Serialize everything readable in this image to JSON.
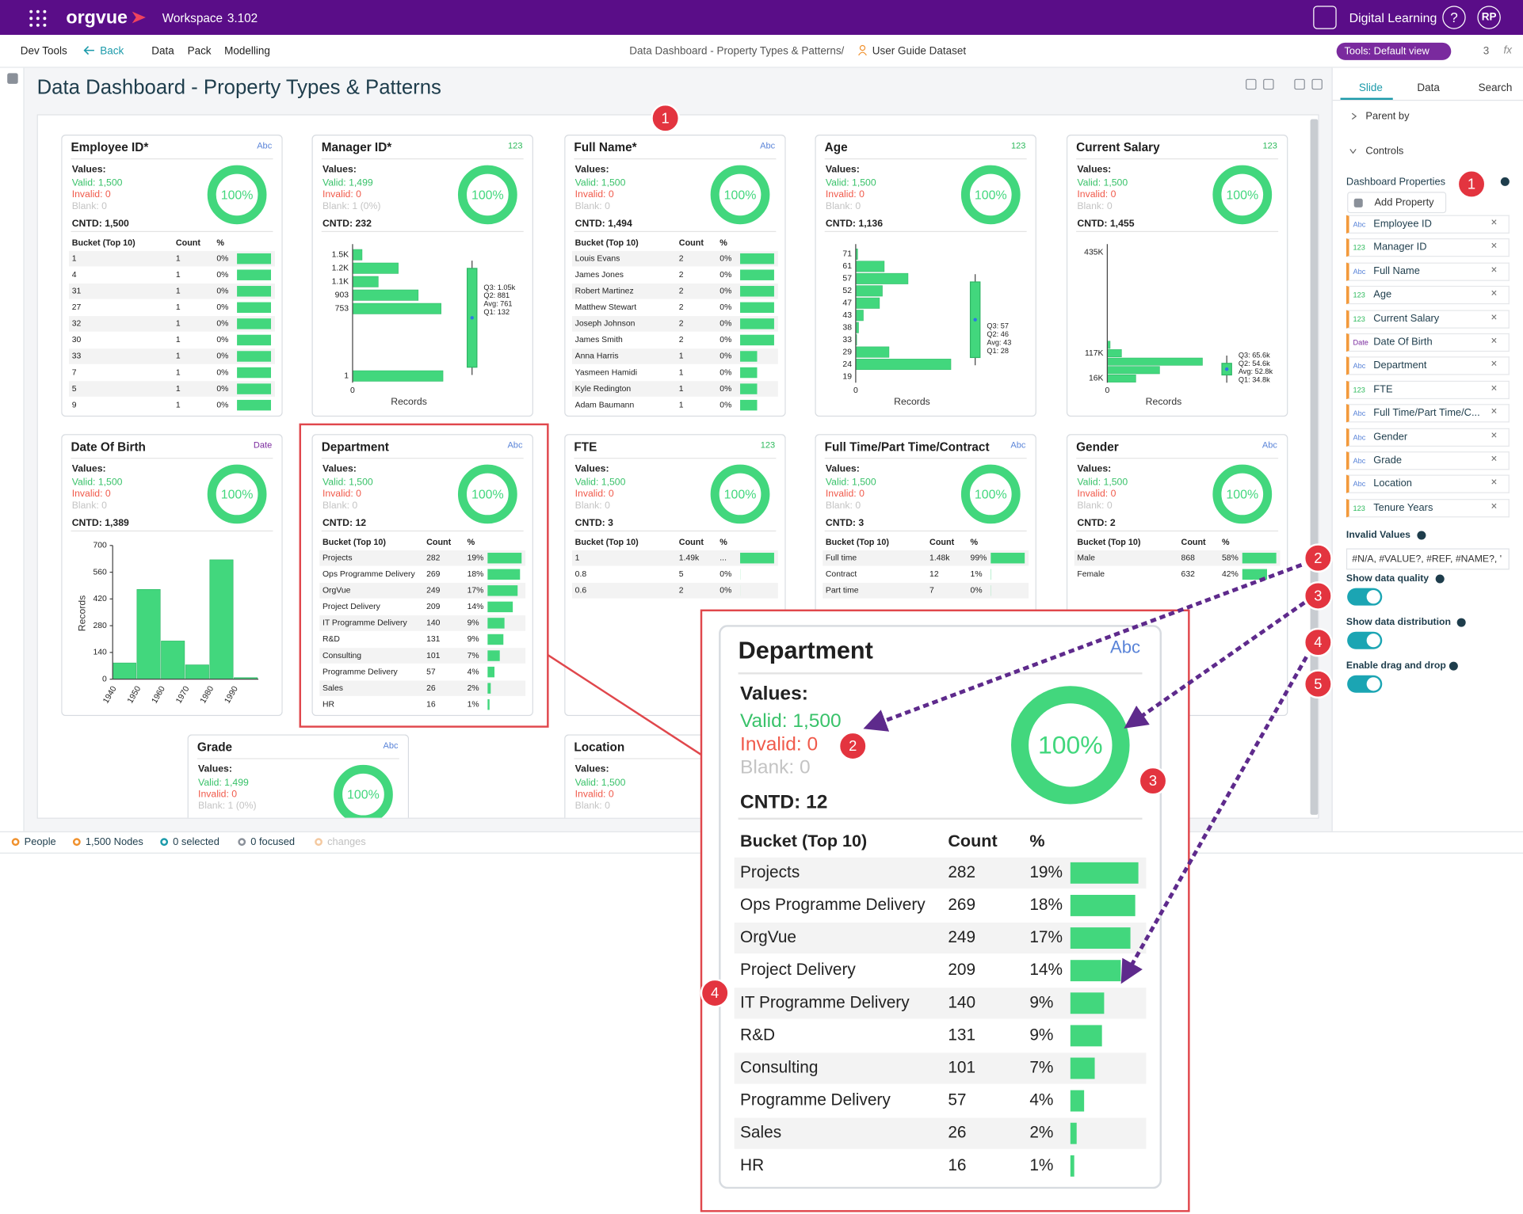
{
  "topbar": {
    "brand": "orgvue",
    "workspace": "Workspace",
    "version": "3.102",
    "space": "Digital Learning",
    "help": "?",
    "avatar": "RP"
  },
  "menubar": {
    "dev_tools": "Dev Tools",
    "back": "Back",
    "menus": [
      "Data",
      "Pack",
      "Modelling"
    ],
    "page": "Data Dashboard - Property Types & Patterns",
    "separator": "/",
    "dataset": "User Guide Dataset",
    "view": "Tools: Default view",
    "users": "3",
    "fx": "fx"
  },
  "dashboard": {
    "title": "Data Dashboard - Property Types & Patterns",
    "cards": [
      {
        "title": "Employee ID*",
        "tag": "Abc",
        "values_label": "Values:",
        "valid": "Valid: 1,500",
        "invalid": "Invalid: 0",
        "blank": "Blank: 0",
        "donut": "100%",
        "cntd": "CNTD: 1,500",
        "table": {
          "headers": [
            "Bucket (Top 10)",
            "Count",
            "%"
          ],
          "rows": [
            {
              "label": "1",
              "count": 1,
              "percent": "0%"
            },
            {
              "label": "4",
              "count": 1,
              "percent": "0%"
            },
            {
              "label": "31",
              "count": 1,
              "percent": "0%"
            },
            {
              "label": "27",
              "count": 1,
              "percent": "0%"
            },
            {
              "label": "32",
              "count": 1,
              "percent": "0%"
            },
            {
              "label": "30",
              "count": 1,
              "percent": "0%"
            },
            {
              "label": "33",
              "count": 1,
              "percent": "0%"
            },
            {
              "label": "7",
              "count": 1,
              "percent": "0%"
            },
            {
              "label": "5",
              "count": 1,
              "percent": "0%"
            },
            {
              "label": "9",
              "count": 1,
              "percent": "0%"
            }
          ]
        }
      },
      {
        "title": "Manager ID*",
        "tag": "123",
        "values_label": "Values:",
        "valid": "Valid: 1,499",
        "invalid": "Invalid: 0",
        "blank": "Blank: 1 (0%)",
        "donut": "100%",
        "cntd": "CNTD: 232",
        "chart": {
          "type": "hbar",
          "categories": [
            "1.5K",
            "1.2K",
            "1.1K",
            "903",
            "753",
            null,
            null,
            null,
            null,
            "1"
          ],
          "values": [
            10,
            48,
            27,
            69,
            93,
            0,
            0,
            0,
            0,
            95
          ],
          "xlim": [
            0,
            100
          ],
          "xticks": [
            0
          ],
          "xlabel": "Records",
          "box": [
            "Q3: 1.05k",
            "Q2: 881",
            "Avg: 761",
            "Q1: 132"
          ]
        }
      },
      {
        "title": "Full Name*",
        "tag": "Abc",
        "values_label": "Values:",
        "valid": "Valid: 1,500",
        "invalid": "Invalid: 0",
        "blank": "Blank: 0",
        "donut": "100%",
        "cntd": "CNTD: 1,494",
        "table": {
          "headers": [
            "Bucket (Top 10)",
            "Count",
            "%"
          ],
          "rows": [
            {
              "label": "Louis Evans",
              "count": 2,
              "percent": "0%"
            },
            {
              "label": "James Jones",
              "count": 2,
              "percent": "0%"
            },
            {
              "label": "Robert Martinez",
              "count": 2,
              "percent": "0%"
            },
            {
              "label": "Matthew Stewart",
              "count": 2,
              "percent": "0%"
            },
            {
              "label": "Joseph Johnson",
              "count": 2,
              "percent": "0%"
            },
            {
              "label": "James Smith",
              "count": 2,
              "percent": "0%"
            },
            {
              "label": "Anna Harris",
              "count": 1,
              "percent": "0%"
            },
            {
              "label": "Yasmeen Hamidi",
              "count": 1,
              "percent": "0%"
            },
            {
              "label": "Kyle Redington",
              "count": 1,
              "percent": "0%"
            },
            {
              "label": "Adam Baumann",
              "count": 1,
              "percent": "0%"
            }
          ]
        }
      },
      {
        "title": "Age",
        "tag": "123",
        "values_label": "Values:",
        "valid": "Valid: 1,500",
        "invalid": "Invalid: 0",
        "blank": "Blank: 0",
        "donut": "100%",
        "cntd": "CNTD: 1,136",
        "chart": {
          "type": "hbar",
          "categories": [
            "71",
            "61",
            "57",
            "52",
            "47",
            "43",
            "38",
            "33",
            "29",
            "24",
            "19"
          ],
          "values": [
            2,
            30,
            55,
            28,
            25,
            8,
            3,
            1,
            35,
            100,
            0
          ],
          "xlim": [
            0,
            100
          ],
          "xticks": [
            0
          ],
          "xlabel": "Records",
          "box": [
            "Q3: 57",
            "Q2: 46",
            "Avg: 43",
            "Q1: 28"
          ]
        }
      },
      {
        "title": "Current Salary",
        "tag": "123",
        "values_label": "Values:",
        "valid": "Valid: 1,500",
        "invalid": "Invalid: 0",
        "blank": "Blank: 0",
        "donut": "100%",
        "cntd": "CNTD: 1,455",
        "chart": {
          "type": "hbar",
          "categories": [
            "435K",
            null,
            null,
            null,
            null,
            null,
            null,
            null,
            null,
            null,
            null,
            null,
            "117K",
            null,
            null,
            "16K"
          ],
          "values": [
            0,
            0,
            0,
            0,
            0,
            0,
            0,
            0,
            0,
            0,
            0,
            3,
            15,
            100,
            55,
            30
          ],
          "xlim": [
            0,
            100
          ],
          "xticks": [
            0
          ],
          "xlabel": "Records",
          "box": [
            "Q3: 65.6k",
            "Q2: 54.6k",
            "Avg: 52.8k",
            "Q1: 34.8k"
          ]
        }
      },
      {
        "title": "Date Of Birth",
        "tag": "Date",
        "values_label": "Values:",
        "valid": "Valid: 1,500",
        "invalid": "Invalid: 0",
        "blank": "Blank: 0",
        "donut": "100%",
        "cntd": "CNTD: 1,389",
        "chart": {
          "type": "column",
          "categories": [
            "1940",
            "1950",
            "1960",
            "1970",
            "1980",
            "1990"
          ],
          "values": [
            85,
            470,
            200,
            75,
            625,
            8
          ],
          "ylim": [
            0,
            700
          ],
          "yticks": [
            0,
            140,
            280,
            420,
            560,
            700
          ],
          "ylabel": "Records"
        }
      },
      {
        "title": "Department",
        "tag": "Abc",
        "values_label": "Values:",
        "valid": "Valid: 1,500",
        "invalid": "Invalid: 0",
        "blank": "Blank: 0",
        "donut": "100%",
        "cntd": "CNTD: 12",
        "table": {
          "headers": [
            "Bucket (Top 10)",
            "Count",
            "%"
          ],
          "rows": [
            {
              "label": "Projects",
              "count": 282,
              "percent": "19%"
            },
            {
              "label": "Ops Programme Delivery",
              "count": 269,
              "percent": "18%"
            },
            {
              "label": "OrgVue",
              "count": 249,
              "percent": "17%"
            },
            {
              "label": "Project Delivery",
              "count": 209,
              "percent": "14%"
            },
            {
              "label": "IT Programme Delivery",
              "count": 140,
              "percent": "9%"
            },
            {
              "label": "R&D",
              "count": 131,
              "percent": "9%"
            },
            {
              "label": "Consulting",
              "count": 101,
              "percent": "7%"
            },
            {
              "label": "Programme Delivery",
              "count": 57,
              "percent": "4%"
            },
            {
              "label": "Sales",
              "count": 26,
              "percent": "2%"
            },
            {
              "label": "HR",
              "count": 16,
              "percent": "1%"
            }
          ]
        }
      },
      {
        "title": "FTE",
        "tag": "123",
        "values_label": "Values:",
        "valid": "Valid: 1,500",
        "invalid": "Invalid: 0",
        "blank": "Blank: 0",
        "donut": "100%",
        "cntd": "CNTD: 3",
        "table": {
          "headers": [
            "Bucket (Top 10)",
            "Count",
            "%"
          ],
          "rows": [
            {
              "label": "1",
              "count": {
                "value": 1490,
                "label": "1.49k"
              },
              "percent": "..."
            },
            {
              "label": "0.8",
              "count": 5,
              "percent": "0%"
            },
            {
              "label": "0.6",
              "count": 2,
              "percent": "0%"
            }
          ]
        }
      },
      {
        "title": "Full Time/Part Time/Contract",
        "tag": "Abc",
        "values_label": "Values:",
        "valid": "Valid: 1,500",
        "invalid": "Invalid: 0",
        "blank": "Blank: 0",
        "donut": "100%",
        "cntd": "CNTD: 3",
        "table": {
          "headers": [
            "Bucket (Top 10)",
            "Count",
            "%"
          ],
          "rows": [
            {
              "label": "Full time",
              "count": {
                "value": 1480,
                "label": "1.48k"
              },
              "percent": "99%"
            },
            {
              "label": "Contract",
              "count": 12,
              "percent": "1%"
            },
            {
              "label": "Part time",
              "count": 7,
              "percent": "0%"
            }
          ]
        }
      },
      {
        "title": "Gender",
        "tag": "Abc",
        "values_label": "Values:",
        "valid": "Valid: 1,500",
        "invalid": "Invalid: 0",
        "blank": "Blank: 0",
        "donut": "100%",
        "cntd": "CNTD: 2",
        "table": {
          "headers": [
            "Bucket (Top 10)",
            "Count",
            "%"
          ],
          "rows": [
            {
              "label": "Male",
              "count": 868,
              "percent": "58%"
            },
            {
              "label": "Female",
              "count": 632,
              "percent": "42%"
            }
          ]
        }
      },
      {
        "title": "Grade",
        "tag": "Abc",
        "values_label": "Values:",
        "valid": "Valid: 1,499",
        "invalid": "Invalid: 0",
        "blank": "Blank: 1 (0%)",
        "donut": "100%"
      },
      {
        "title": "Location",
        "values_label": "Values:",
        "valid": "Valid: 1,500",
        "invalid": "Invalid: 0",
        "blank": "Blank: 0"
      }
    ]
  },
  "sidebar": {
    "tabs": [
      "Slide",
      "Data",
      "Search"
    ],
    "parent_by": "Parent by",
    "controls": "Controls",
    "dashboard_properties": "Dashboard Properties",
    "add_property": "Add Property",
    "properties": [
      {
        "tag": "Abc",
        "name": "Employee ID"
      },
      {
        "tag": "123",
        "name": "Manager ID"
      },
      {
        "tag": "Abc",
        "name": "Full Name"
      },
      {
        "tag": "123",
        "name": "Age"
      },
      {
        "tag": "123",
        "name": "Current Salary"
      },
      {
        "tag": "Date",
        "name": "Date Of Birth"
      },
      {
        "tag": "Abc",
        "name": "Department"
      },
      {
        "tag": "123",
        "name": "FTE"
      },
      {
        "tag": "Abc",
        "name": "Full Time/Part Time/C..."
      },
      {
        "tag": "Abc",
        "name": "Gender"
      },
      {
        "tag": "Abc",
        "name": "Grade"
      },
      {
        "tag": "Abc",
        "name": "Location"
      },
      {
        "tag": "123",
        "name": "Tenure Years"
      }
    ],
    "remove": "×",
    "invalid_values_label": "Invalid Values",
    "invalid_values": "#N/A, #VALUE?, #REF, #NAME?, '",
    "toggles": [
      "Show data quality",
      "Show data distribution",
      "Enable drag and drop"
    ]
  },
  "statusbar": {
    "items": [
      "People",
      "1,500 Nodes",
      "0 selected",
      "0 focused",
      "changes"
    ]
  },
  "callouts": [
    "1",
    "1",
    "2",
    "3",
    "4",
    "5",
    "2",
    "3",
    "4"
  ]
}
